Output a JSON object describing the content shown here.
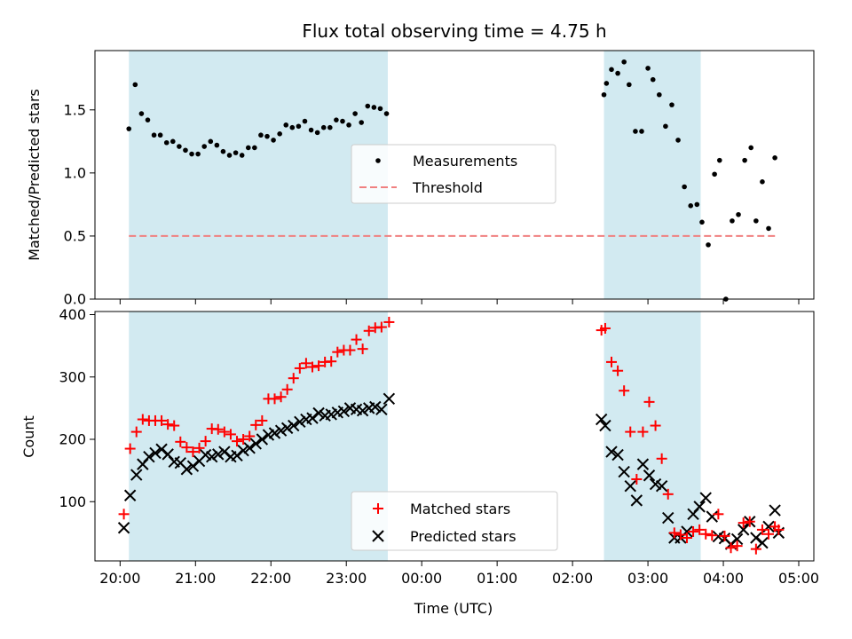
{
  "chart_data": {
    "title": "Flux total observing time = 4.75 h",
    "xlabel": "Time (UTC)",
    "x_ticks": [
      "20:00",
      "21:00",
      "22:00",
      "23:00",
      "00:00",
      "01:00",
      "02:00",
      "03:00",
      "04:00",
      "05:00"
    ],
    "shaded_intervals": [
      [
        "20:07",
        "23:33"
      ],
      [
        "02:25",
        "03:42"
      ]
    ],
    "colors": {
      "shade": "#add8e6",
      "measurements": "#000000",
      "threshold": "#f08080",
      "matched": "#ff0000",
      "predicted": "#000000"
    },
    "panels": [
      {
        "type": "scatter",
        "ylabel": "Matched/Predicted stars",
        "ylim": [
          0,
          1.97
        ],
        "y_ticks": [
          "0.0",
          "0.5",
          "1.0",
          "1.5"
        ],
        "legend_position": "center",
        "legend": [
          "Measurements",
          "Threshold"
        ],
        "threshold": {
          "value": 0.5,
          "x_start": "20:07",
          "x_end": "04:43"
        },
        "series": [
          {
            "name": "Measurements",
            "x": [
              "20:07",
              "20:12",
              "20:17",
              "20:22",
              "20:27",
              "20:32",
              "20:37",
              "20:42",
              "20:47",
              "20:52",
              "20:57",
              "21:02",
              "21:07",
              "21:12",
              "21:17",
              "21:22",
              "21:27",
              "21:32",
              "21:37",
              "21:42",
              "21:47",
              "21:52",
              "21:57",
              "22:02",
              "22:07",
              "22:12",
              "22:17",
              "22:22",
              "22:27",
              "22:32",
              "22:37",
              "22:42",
              "22:47",
              "22:52",
              "22:57",
              "23:02",
              "23:07",
              "23:12",
              "23:17",
              "23:22",
              "23:27",
              "23:32",
              "02:25",
              "02:27",
              "02:31",
              "02:36",
              "02:41",
              "02:45",
              "02:50",
              "02:55",
              "03:00",
              "03:04",
              "03:09",
              "03:14",
              "03:19",
              "03:24",
              "03:29",
              "03:34",
              "03:39",
              "03:43",
              "03:48",
              "03:53",
              "03:57",
              "04:02",
              "04:07",
              "04:12",
              "04:17",
              "04:22",
              "04:26",
              "04:31",
              "04:36",
              "04:41"
            ],
            "y": [
              1.35,
              1.7,
              1.47,
              1.42,
              1.3,
              1.3,
              1.24,
              1.25,
              1.21,
              1.18,
              1.15,
              1.15,
              1.21,
              1.25,
              1.22,
              1.17,
              1.14,
              1.16,
              1.14,
              1.2,
              1.2,
              1.3,
              1.29,
              1.26,
              1.31,
              1.38,
              1.36,
              1.37,
              1.41,
              1.34,
              1.32,
              1.36,
              1.36,
              1.42,
              1.41,
              1.38,
              1.47,
              1.4,
              1.53,
              1.52,
              1.51,
              1.47,
              1.62,
              1.71,
              1.82,
              1.79,
              1.88,
              1.7,
              1.33,
              1.33,
              1.83,
              1.74,
              1.62,
              1.37,
              1.54,
              1.26,
              0.89,
              0.74,
              0.75,
              0.61,
              0.43,
              0.99,
              1.1,
              0.0,
              0.62,
              0.67,
              1.1,
              1.2,
              0.62,
              0.93,
              0.56,
              1.12
            ]
          }
        ]
      },
      {
        "type": "scatter",
        "ylabel": "Count",
        "ylim": [
          5,
          405
        ],
        "y_ticks": [
          "100",
          "200",
          "300",
          "400"
        ],
        "legend_position": "lower center",
        "legend": [
          "Matched stars",
          "Predicted stars"
        ],
        "series": [
          {
            "name": "Matched stars",
            "x": [
              "20:03",
              "20:08",
              "20:13",
              "20:18",
              "20:23",
              "20:28",
              "20:33",
              "20:38",
              "20:43",
              "20:48",
              "20:53",
              "20:58",
              "21:03",
              "21:08",
              "21:13",
              "21:18",
              "21:23",
              "21:28",
              "21:33",
              "21:38",
              "21:43",
              "21:48",
              "21:53",
              "21:58",
              "22:03",
              "22:08",
              "22:13",
              "22:18",
              "22:23",
              "22:28",
              "22:33",
              "22:38",
              "22:43",
              "22:48",
              "22:53",
              "22:58",
              "23:03",
              "23:08",
              "23:13",
              "23:18",
              "23:23",
              "23:28",
              "23:34",
              "02:23",
              "02:26",
              "02:31",
              "02:36",
              "02:41",
              "02:46",
              "02:51",
              "02:56",
              "03:01",
              "03:06",
              "03:11",
              "03:16",
              "03:21",
              "03:26",
              "03:31",
              "03:36",
              "03:41",
              "03:46",
              "03:51",
              "03:56",
              "04:01",
              "04:06",
              "04:11",
              "04:16",
              "04:21",
              "04:26",
              "04:31",
              "04:36",
              "04:41",
              "04:44"
            ],
            "y": [
              80,
              185,
              212,
              232,
              230,
              230,
              230,
              224,
              222,
              196,
              187,
              180,
              186,
              197,
              217,
              216,
              212,
              208,
              197,
              200,
              205,
              223,
              230,
              265,
              265,
              268,
              280,
              298,
              314,
              322,
              316,
              318,
              324,
              325,
              340,
              343,
              343,
              360,
              345,
              374,
              379,
              380,
              388,
              375,
              378,
              324,
              310,
              278,
              212,
              136,
              212,
              260,
              222,
              169,
              112,
              50,
              47,
              42,
              52,
              55,
              48,
              46,
              80,
              45,
              26,
              29,
              66,
              68,
              24,
              55,
              48,
              60,
              55
            ]
          },
          {
            "name": "Predicted stars",
            "x": [
              "20:03",
              "20:08",
              "20:13",
              "20:18",
              "20:23",
              "20:28",
              "20:33",
              "20:38",
              "20:43",
              "20:48",
              "20:53",
              "20:58",
              "21:03",
              "21:08",
              "21:13",
              "21:18",
              "21:23",
              "21:28",
              "21:33",
              "21:38",
              "21:43",
              "21:48",
              "21:53",
              "21:58",
              "22:03",
              "22:08",
              "22:13",
              "22:18",
              "22:23",
              "22:28",
              "22:33",
              "22:38",
              "22:43",
              "22:48",
              "22:53",
              "22:58",
              "23:03",
              "23:08",
              "23:13",
              "23:18",
              "23:23",
              "23:28",
              "23:34",
              "02:23",
              "02:26",
              "02:31",
              "02:36",
              "02:41",
              "02:46",
              "02:51",
              "02:56",
              "03:01",
              "03:06",
              "03:11",
              "03:16",
              "03:21",
              "03:26",
              "03:31",
              "03:36",
              "03:41",
              "03:46",
              "03:51",
              "03:56",
              "04:01",
              "04:06",
              "04:11",
              "04:16",
              "04:21",
              "04:26",
              "04:31",
              "04:36",
              "04:41",
              "04:44"
            ],
            "y": [
              58,
              110,
              143,
              160,
              172,
              178,
              184,
              176,
              164,
              162,
              152,
              157,
              165,
              175,
              172,
              176,
              180,
              172,
              174,
              182,
              186,
              193,
              200,
              207,
              210,
              214,
              218,
              222,
              228,
              232,
              234,
              242,
              238,
              240,
              243,
              245,
              250,
              248,
              246,
              250,
              252,
              248,
              265,
              232,
              222,
              180,
              175,
              148,
              125,
              102,
              160,
              142,
              128,
              125,
              74,
              42,
              42,
              52,
              80,
              92,
              106,
              76,
              44,
              41,
              32,
              40,
              55,
              68,
              42,
              34,
              60,
              86,
              50
            ]
          }
        ]
      }
    ]
  }
}
